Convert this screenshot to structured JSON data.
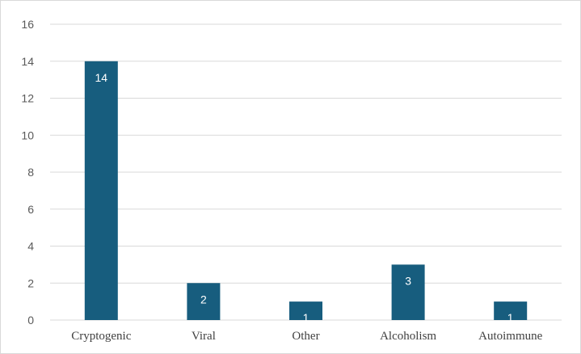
{
  "chart_data": {
    "type": "bar",
    "categories": [
      "Cryptogenic",
      "Viral",
      "Other",
      "Alcoholism",
      "Autoimmune"
    ],
    "values": [
      14,
      2,
      1,
      3,
      1
    ],
    "ylim": [
      0,
      16
    ],
    "yticks": [
      0,
      2,
      4,
      6,
      8,
      10,
      12,
      14,
      16
    ],
    "grid": true,
    "legend": "none",
    "bar_color": "#175d7e",
    "grid_color": "#d9d9d9",
    "data_label_color": "#ffffff"
  }
}
